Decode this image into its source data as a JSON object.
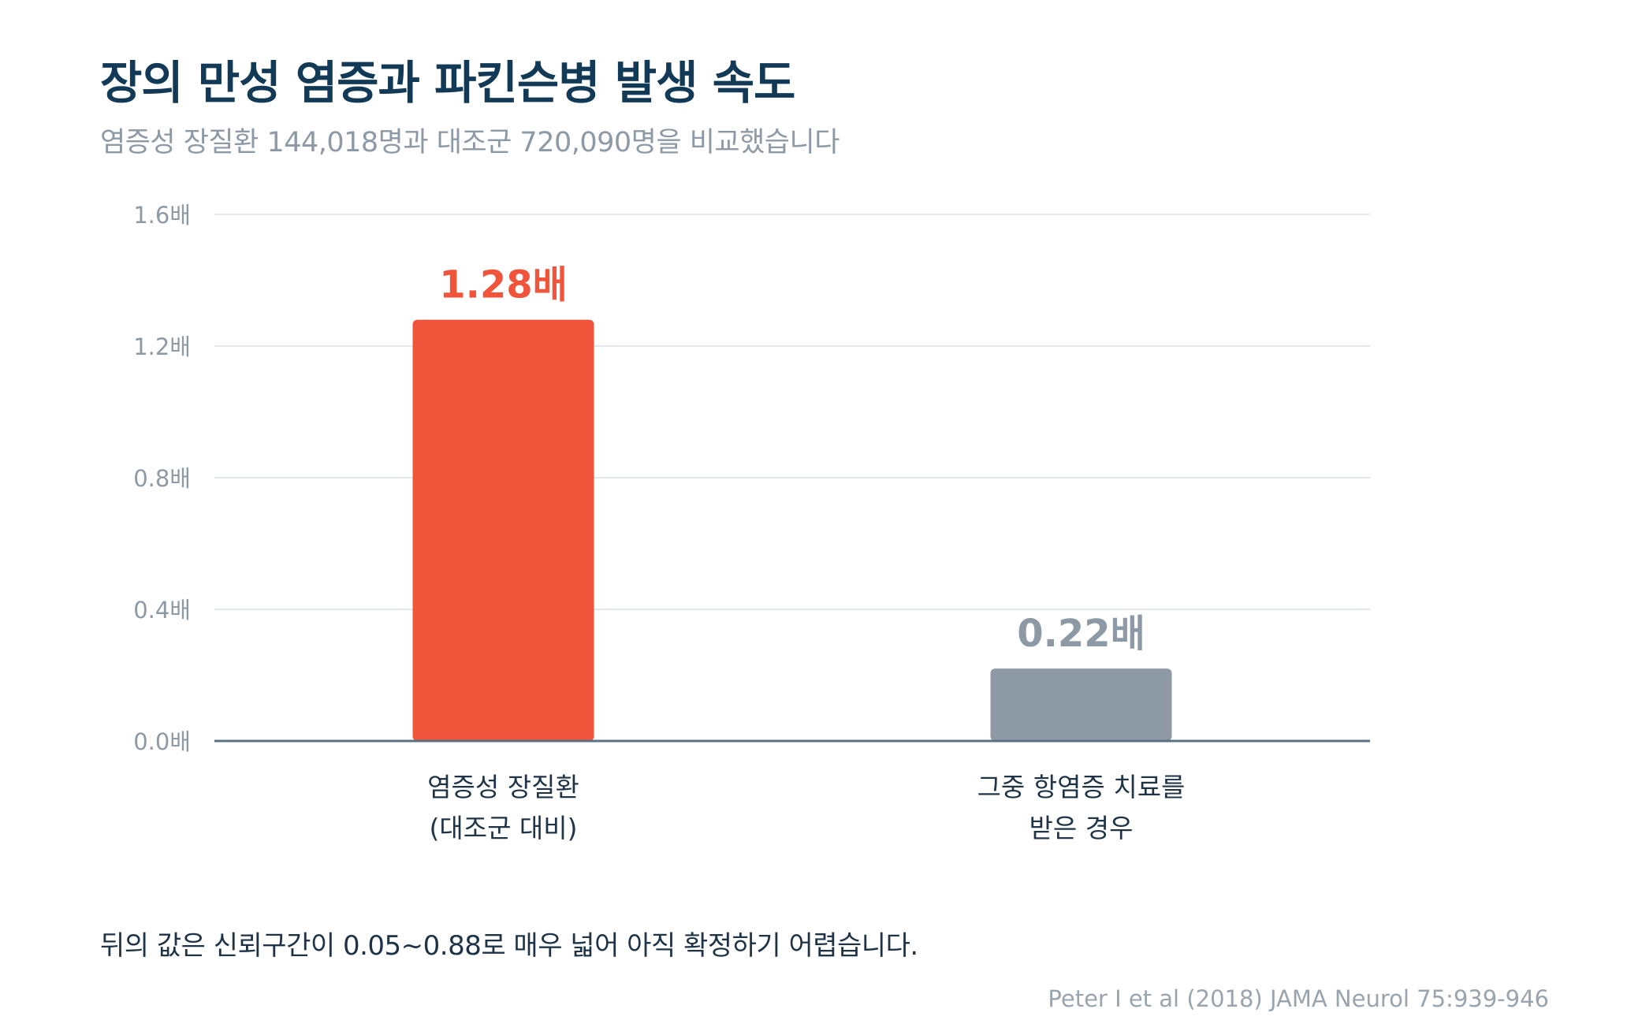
{
  "title": "장의 만성 염증과 파킨슨병 발생 속도",
  "subtitle": "염증성 장질환 144,018명과 대조군 720,090명을 비교했습니다",
  "footnote": "뒤의 값은 신뢰구간이 0.05~0.88로 매우 넓어 아직 확정하기 어렵습니다.",
  "source": "Peter I et al (2018) JAMA Neurol 75:939-946",
  "chart_data": {
    "type": "bar",
    "categories": [
      [
        "염증성 장질환",
        "(대조군 대비)"
      ],
      [
        "그중 항염증 치료를",
        "받은 경우"
      ]
    ],
    "values": [
      1.28,
      0.22
    ],
    "value_labels": [
      "1.28배",
      "0.22배"
    ],
    "bar_colors": [
      "#f0553c",
      "#8d9aa6"
    ],
    "value_label_colors": [
      "#f0553c",
      "#8d9aa6"
    ],
    "ylim": [
      0,
      1.6
    ],
    "yticks": [
      0.0,
      0.4,
      0.8,
      1.2,
      1.6
    ],
    "ytick_labels": [
      "0.0배",
      "0.4배",
      "0.8배",
      "1.2배",
      "1.6배"
    ],
    "grid": true,
    "legend": false
  }
}
